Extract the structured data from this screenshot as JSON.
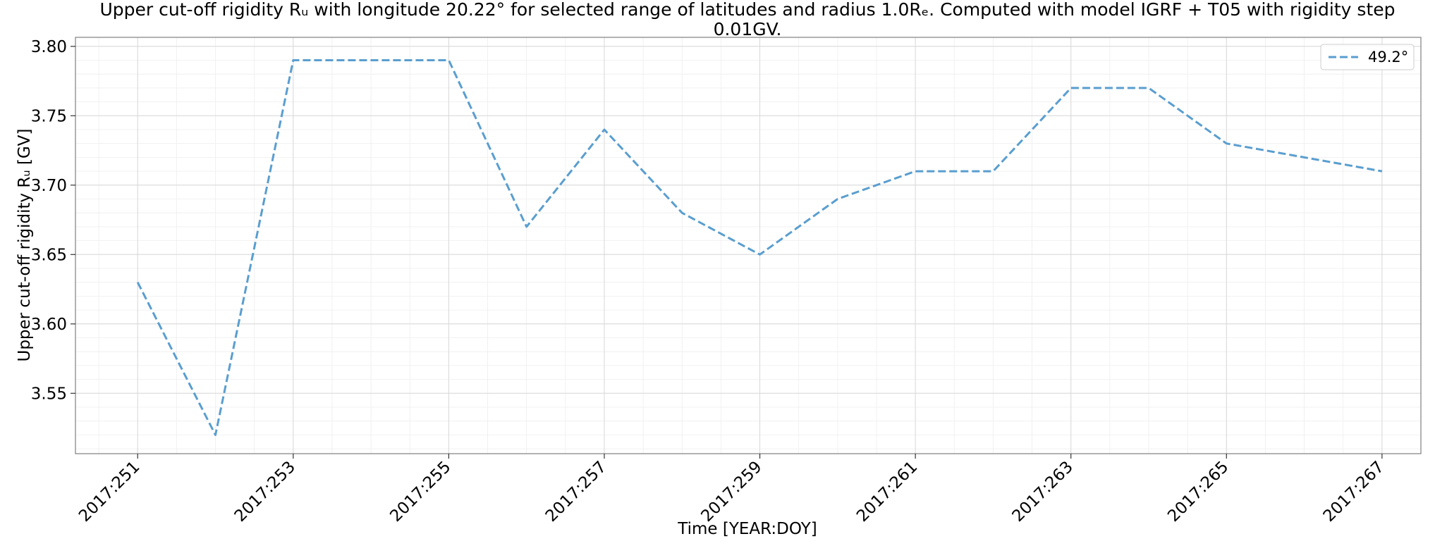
{
  "chart_data": {
    "type": "line",
    "title_line1": "Upper cut-off rigidity Rᵤ with longitude 20.22° for selected range of latitudes and radius 1.0Rₑ. Computed with model IGRF + T05 with rigidity step",
    "title_line2": "0.01GV.",
    "xlabel": "Time [YEAR:DOY]",
    "ylabel": "Upper cut-off rigidity Rᵤ [GV]",
    "x_ticks": [
      "2017:251",
      "2017:253",
      "2017:255",
      "2017:257",
      "2017:259",
      "2017:261",
      "2017:263",
      "2017:265",
      "2017:267"
    ],
    "y_ticks": [
      "3.55",
      "3.60",
      "3.65",
      "3.70",
      "3.75",
      "3.80"
    ],
    "x_range": [
      250.2,
      267.5
    ],
    "ylim": [
      3.5065,
      3.8065
    ],
    "grid": true,
    "minor_grid": true,
    "legend_position": "top-right",
    "series": [
      {
        "name": "49.2°",
        "color": "#5a9ecf",
        "style": "dashed",
        "x": [
          "2017:251",
          "2017:252",
          "2017:253",
          "2017:254",
          "2017:255",
          "2017:256",
          "2017:257",
          "2017:258",
          "2017:259",
          "2017:260",
          "2017:261",
          "2017:262",
          "2017:263",
          "2017:264",
          "2017:265",
          "2017:266",
          "2017:267"
        ],
        "values": [
          3.63,
          3.52,
          3.79,
          3.79,
          3.79,
          3.67,
          3.74,
          3.68,
          3.65,
          3.69,
          3.71,
          3.71,
          3.77,
          3.77,
          3.73,
          3.72,
          3.71
        ]
      }
    ]
  }
}
